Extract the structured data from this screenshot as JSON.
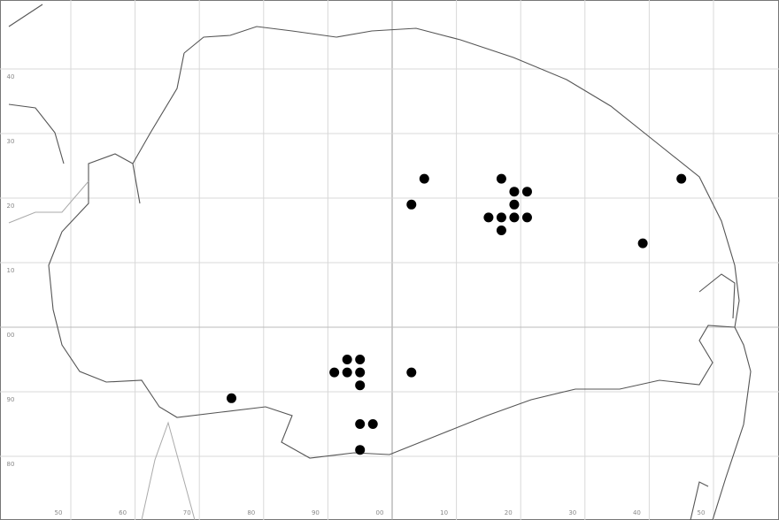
{
  "chart_data": {
    "type": "scatter",
    "x": [
      5,
      3,
      17,
      19,
      21,
      19,
      15,
      17,
      19,
      21,
      17,
      45,
      39,
      -7,
      -5,
      -9,
      -7,
      -5,
      -5,
      3,
      -25,
      -5,
      -3,
      -5
    ],
    "values": [
      23,
      19,
      23,
      21,
      21,
      19,
      17,
      17,
      17,
      17,
      15,
      23,
      13,
      -5,
      -5,
      -7,
      -7,
      -7,
      -9,
      -7,
      -11,
      -15,
      -15,
      -19
    ],
    "color": "#000000",
    "xlim": [
      -60,
      60
    ],
    "ylim": [
      -30,
      50
    ],
    "xticks": [
      {
        "value": -50,
        "label": "50"
      },
      {
        "value": -40,
        "label": "60"
      },
      {
        "value": -30,
        "label": "70"
      },
      {
        "value": -20,
        "label": "80"
      },
      {
        "value": -10,
        "label": "90"
      },
      {
        "value": 0,
        "label": "00"
      },
      10,
      20,
      30,
      40,
      {
        "value": 50,
        "label": "50"
      }
    ],
    "yticks": [
      {
        "value": -20,
        "label": "80"
      },
      {
        "value": -10,
        "label": "90"
      },
      {
        "value": 0,
        "label": "00"
      },
      10,
      20,
      30,
      40
    ],
    "grid": true
  }
}
